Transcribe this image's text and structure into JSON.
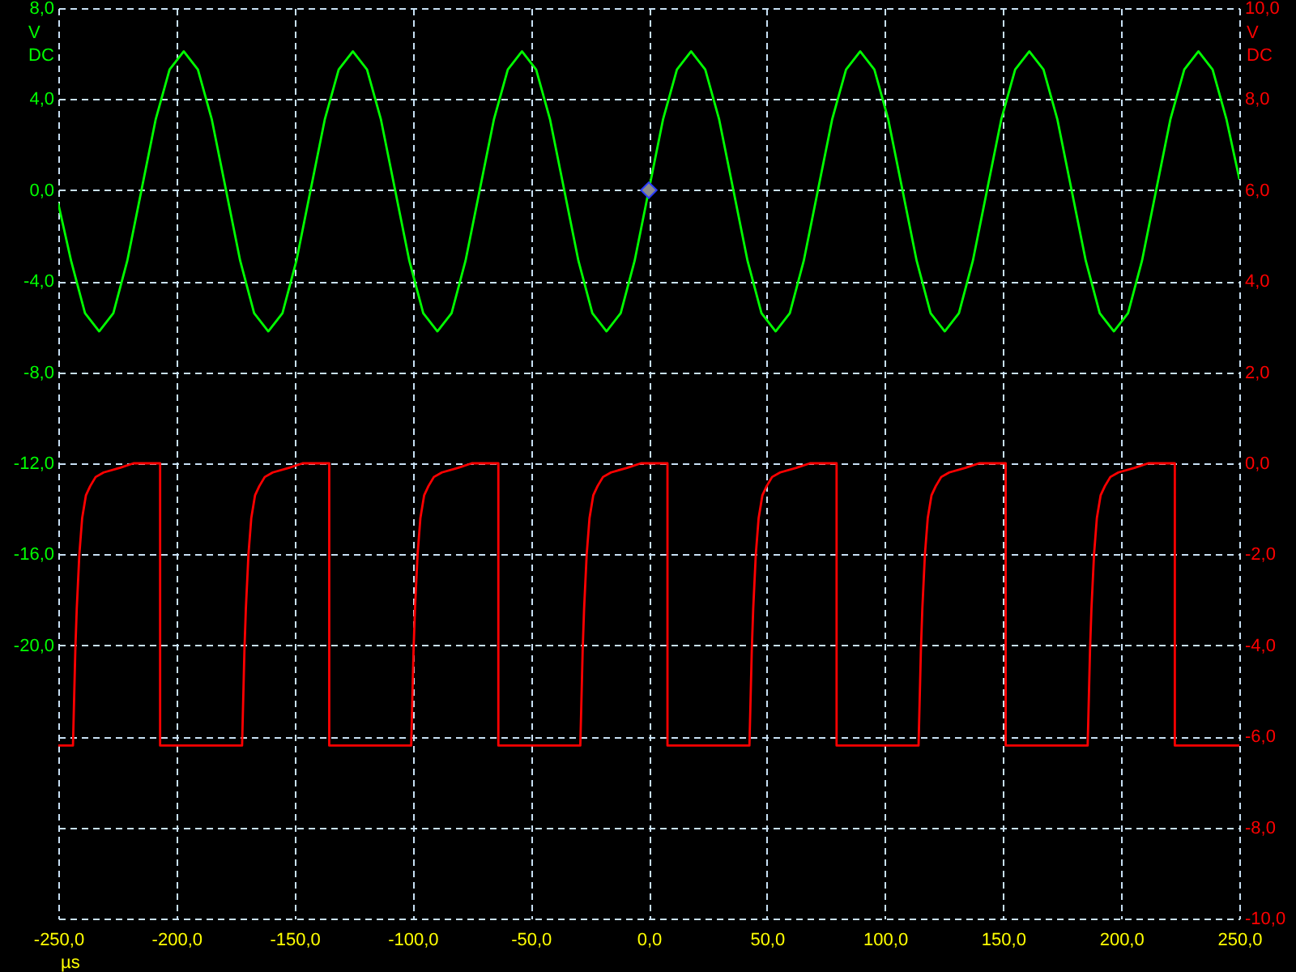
{
  "chart_data": {
    "type": "line",
    "xlabel": "µs",
    "ylabel": "V DC",
    "y2label": "V DC",
    "series": [
      {
        "color": "#00ff00",
        "x": [
          -250,
          -244.6,
          -238.7,
          -232.7,
          -226.7,
          -220.8,
          -214.8,
          -208.8,
          -202.9,
          -196.9,
          -190.9,
          -185,
          -179,
          -173,
          -167.1,
          -161.1,
          -155.1,
          -149.2,
          -143.2,
          -137.2,
          -131.3,
          -125.3,
          -119.3,
          -113.4,
          -107.4,
          -101.4,
          -95.5,
          -89.5,
          -83.5,
          -77.6,
          -71.6,
          -65.6,
          -59.7,
          -53.7,
          -47.7,
          -41.8,
          -35.8,
          -29.8,
          -23.9,
          -17.9,
          -11.9,
          -6,
          0,
          6,
          11.9,
          17.9,
          23.9,
          29.8,
          35.8,
          41.8,
          47.7,
          53.7,
          59.7,
          65.6,
          71.6,
          77.6,
          83.5,
          89.5,
          95.5,
          101.4,
          107.4,
          113.4,
          119.3,
          125.3,
          131.3,
          137.2,
          143.2,
          149.2,
          155.1,
          161.1,
          167.1,
          173,
          179,
          185,
          190.9,
          196.9,
          202.9,
          208.8,
          214.8,
          220.8,
          226.7,
          232.7,
          238.7,
          244.6,
          250
        ],
        "values": [
          -0.6,
          -3.1,
          -5.4,
          -6.2,
          -5.4,
          -3.1,
          0,
          3.1,
          5.3,
          6.1,
          5.3,
          3.1,
          0,
          -3.1,
          -5.4,
          -6.2,
          -5.4,
          -3.1,
          0,
          3.1,
          5.3,
          6.1,
          5.3,
          3.1,
          0,
          -3.1,
          -5.4,
          -6.2,
          -5.4,
          -3.1,
          0,
          3.1,
          5.3,
          6.1,
          5.3,
          3.1,
          0,
          -3.1,
          -5.4,
          -6.2,
          -5.4,
          -3.1,
          0,
          3.1,
          5.3,
          6.1,
          5.3,
          3.1,
          0,
          -3.1,
          -5.4,
          -6.2,
          -5.4,
          -3.1,
          0,
          3.1,
          5.3,
          6.1,
          5.3,
          3.1,
          0,
          -3.1,
          -5.4,
          -6.2,
          -5.4,
          -3.1,
          0,
          3.1,
          5.3,
          6.1,
          5.3,
          3.1,
          0,
          -3.1,
          -5.4,
          -6.2,
          -5.4,
          -3.1,
          0,
          3.1,
          5.3,
          6.1,
          5.3,
          3.1,
          0.5
        ]
      },
      {
        "color": "#ff0000",
        "axis": "y2",
        "x": [
          -250,
          -243.8,
          -242.8,
          -242.2,
          -241.1,
          -239.9,
          -238.3,
          -236.5,
          -234.2,
          -230.8,
          -224,
          -218.2,
          -206.9,
          -206.9,
          -172.2,
          -171.2,
          -170.6,
          -169.5,
          -168.3,
          -166.7,
          -164.9,
          -162.6,
          -159.2,
          -152.4,
          -146.6,
          -135.3,
          -135.3,
          -100.6,
          -99.6,
          -99,
          -97.9,
          -96.7,
          -95.1,
          -93.3,
          -91,
          -87.6,
          -80.8,
          -75,
          -63.7,
          -63.7,
          -29,
          -28,
          -27.4,
          -26.3,
          -25.1,
          -23.5,
          -21.7,
          -19.4,
          -16,
          -9.2,
          -3.4,
          7.9,
          7.9,
          42.6,
          43.6,
          44.2,
          45.3,
          46.5,
          48.1,
          49.9,
          52.2,
          55.6,
          62.4,
          68.2,
          79.5,
          79.5,
          114.2,
          115.2,
          115.8,
          116.9,
          118.1,
          119.7,
          121.5,
          123.8,
          127.2,
          134,
          139.8,
          151.1,
          151.1,
          185.8,
          186.8,
          187.4,
          188.5,
          189.7,
          191.3,
          193.1,
          195.4,
          198.8,
          205.6,
          211.4,
          222.7,
          222.7,
          250
        ],
        "values": [
          -6.2,
          -6.2,
          -4.1,
          -3.2,
          -2,
          -1.2,
          -0.7,
          -0.5,
          -0.3,
          -0.2,
          -0.1,
          0,
          0,
          -6.2,
          -6.2,
          -4.1,
          -3.2,
          -2,
          -1.2,
          -0.7,
          -0.5,
          -0.3,
          -0.2,
          -0.1,
          0,
          0,
          -6.2,
          -6.2,
          -4.1,
          -3.2,
          -2,
          -1.2,
          -0.7,
          -0.5,
          -0.3,
          -0.2,
          -0.1,
          0,
          0,
          -6.2,
          -6.2,
          -4.1,
          -3.2,
          -2,
          -1.2,
          -0.7,
          -0.5,
          -0.3,
          -0.2,
          -0.1,
          0,
          0,
          -6.2,
          -6.2,
          -4.1,
          -3.2,
          -2,
          -1.2,
          -0.7,
          -0.5,
          -0.3,
          -0.2,
          -0.1,
          0,
          0,
          -6.2,
          -6.2,
          -4.1,
          -3.2,
          -2,
          -1.2,
          -0.7,
          -0.5,
          -0.3,
          -0.2,
          -0.1,
          0,
          0,
          -6.2,
          -6.2,
          -4.1,
          -3.2,
          -2,
          -1.2,
          -0.7,
          -0.5,
          -0.3,
          -0.2,
          -0.1,
          0,
          0,
          -6.2,
          -6.2
        ]
      }
    ],
    "xlim": [
      -250,
      250
    ],
    "xticks": [
      {
        "value": -250,
        "label": "-250,0"
      },
      {
        "value": -200,
        "label": "-200,0"
      },
      {
        "value": -150,
        "label": "-150,0"
      },
      {
        "value": -100,
        "label": "-100,0"
      },
      {
        "value": -50,
        "label": "-50,0"
      },
      {
        "value": 0,
        "label": "0,0"
      },
      {
        "value": 50,
        "label": "50,0"
      },
      {
        "value": 100,
        "label": "100,0"
      },
      {
        "value": 150,
        "label": "150,0"
      },
      {
        "value": 200,
        "label": "200,0"
      },
      {
        "value": 250,
        "label": "250,0"
      }
    ],
    "ylim": [
      -32,
      8
    ],
    "yticks": [
      {
        "value": 8,
        "label": "8,0"
      },
      {
        "value": 4,
        "label": "4,0"
      },
      {
        "value": 0,
        "label": "0,0"
      },
      {
        "value": -4,
        "label": "-4,0"
      },
      {
        "value": -8,
        "label": "-8,0"
      },
      {
        "value": -12,
        "label": "-12,0"
      },
      {
        "value": -16,
        "label": "-16,0"
      },
      {
        "value": -20,
        "label": "-20,0"
      },
      {
        "value": -24,
        "label": null
      },
      {
        "value": -28,
        "label": null
      },
      {
        "value": -32,
        "label": null
      }
    ],
    "y2lim": [
      -10,
      10
    ],
    "y2ticks": [
      {
        "value": 10,
        "label": "10,0"
      },
      {
        "value": 8,
        "label": "8,0"
      },
      {
        "value": 6,
        "label": "6,0"
      },
      {
        "value": 4,
        "label": "4,0"
      },
      {
        "value": 2,
        "label": "2,0"
      },
      {
        "value": 0,
        "label": "0,0"
      },
      {
        "value": -2,
        "label": "-2,0"
      },
      {
        "value": -4,
        "label": "-4,0"
      },
      {
        "value": -6,
        "label": "-6,0"
      },
      {
        "value": -8,
        "label": "-8,0"
      },
      {
        "value": -10,
        "label": "-10,0"
      }
    ],
    "grid": true
  }
}
